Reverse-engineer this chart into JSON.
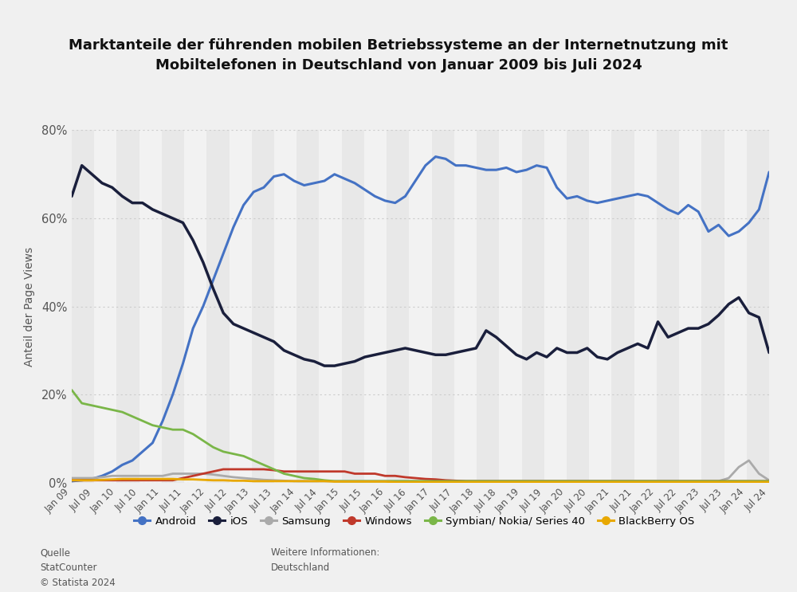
{
  "title": "Marktanteile der führenden mobilen Betriebssysteme an der Internetnutzung mit\nMobiltelefonen in Deutschland von Januar 2009 bis Juli 2024",
  "ylabel": "Anteil der Page Views",
  "fig_background": "#f0f0f0",
  "stripe_dark": "#e8e8e8",
  "stripe_light": "#f2f2f2",
  "grid_color": "#cccccc",
  "ylim": [
    0,
    80
  ],
  "yticks": [
    0,
    20,
    40,
    60,
    80
  ],
  "ytick_labels": [
    "0%",
    "20%",
    "40%",
    "60%",
    "80%"
  ],
  "source_text": "Quelle\nStatCounter\n© Statista 2024",
  "info_text": "Weitere Informationen:\nDeutschland",
  "series": {
    "Android": {
      "color": "#4472c4",
      "linewidth": 2.2,
      "values": [
        0.3,
        0.5,
        0.8,
        1.5,
        2.5,
        4.0,
        5.0,
        7.0,
        9.0,
        14.0,
        20.0,
        27.0,
        35.0,
        40.0,
        46.0,
        52.0,
        58.0,
        63.0,
        66.0,
        67.0,
        69.5,
        70.0,
        68.5,
        67.5,
        68.0,
        68.5,
        70.0,
        69.0,
        68.0,
        66.5,
        65.0,
        64.0,
        63.5,
        65.0,
        68.5,
        72.0,
        74.0,
        73.5,
        72.0,
        72.0,
        71.5,
        71.0,
        71.0,
        71.5,
        70.5,
        71.0,
        72.0,
        71.5,
        67.0,
        64.5,
        65.0,
        64.0,
        63.5,
        64.0,
        64.5,
        65.0,
        65.5,
        65.0,
        63.5,
        62.0,
        61.0,
        63.0,
        61.5,
        57.0,
        58.5,
        56.0,
        57.0,
        59.0,
        62.0,
        70.5
      ]
    },
    "iOS": {
      "color": "#1a1f3c",
      "linewidth": 2.5,
      "values": [
        65.0,
        72.0,
        70.0,
        68.0,
        67.0,
        65.0,
        63.5,
        63.5,
        62.0,
        61.0,
        60.0,
        59.0,
        55.0,
        50.0,
        44.0,
        38.5,
        36.0,
        35.0,
        34.0,
        33.0,
        32.0,
        30.0,
        29.0,
        28.0,
        27.5,
        26.5,
        26.5,
        27.0,
        27.5,
        28.5,
        29.0,
        29.5,
        30.0,
        30.5,
        30.0,
        29.5,
        29.0,
        29.0,
        29.5,
        30.0,
        30.5,
        34.5,
        33.0,
        31.0,
        29.0,
        28.0,
        29.5,
        28.5,
        30.5,
        29.5,
        29.5,
        30.5,
        28.5,
        28.0,
        29.5,
        30.5,
        31.5,
        30.5,
        36.5,
        33.0,
        34.0,
        35.0,
        35.0,
        36.0,
        38.0,
        40.5,
        42.0,
        38.5,
        37.5,
        29.5
      ]
    },
    "Samsung": {
      "color": "#aaaaaa",
      "linewidth": 2.0,
      "values": [
        1.0,
        1.0,
        1.0,
        1.2,
        1.5,
        1.5,
        1.5,
        1.5,
        1.5,
        1.5,
        2.0,
        2.0,
        2.0,
        2.0,
        1.8,
        1.5,
        1.2,
        1.0,
        0.8,
        0.6,
        0.5,
        0.4,
        0.3,
        0.3,
        0.3,
        0.3,
        0.3,
        0.3,
        0.3,
        0.3,
        0.3,
        0.3,
        0.3,
        0.3,
        0.3,
        0.3,
        0.3,
        0.3,
        0.3,
        0.3,
        0.3,
        0.3,
        0.3,
        0.3,
        0.3,
        0.3,
        0.3,
        0.3,
        0.3,
        0.3,
        0.3,
        0.3,
        0.3,
        0.3,
        0.3,
        0.3,
        0.3,
        0.3,
        0.3,
        0.3,
        0.3,
        0.3,
        0.3,
        0.3,
        0.3,
        1.0,
        3.5,
        5.0,
        2.0,
        0.5
      ]
    },
    "Windows": {
      "color": "#c0392b",
      "linewidth": 2.0,
      "values": [
        0.5,
        0.5,
        0.5,
        0.5,
        0.5,
        0.5,
        0.5,
        0.5,
        0.5,
        0.5,
        0.5,
        1.0,
        1.5,
        2.0,
        2.5,
        3.0,
        3.0,
        3.0,
        3.0,
        3.0,
        2.8,
        2.5,
        2.5,
        2.5,
        2.5,
        2.5,
        2.5,
        2.5,
        2.0,
        2.0,
        2.0,
        1.5,
        1.5,
        1.2,
        1.0,
        0.8,
        0.7,
        0.5,
        0.4,
        0.3,
        0.3,
        0.3,
        0.3,
        0.3,
        0.3,
        0.3,
        0.3,
        0.3,
        0.3,
        0.3,
        0.3,
        0.3,
        0.3,
        0.3,
        0.3,
        0.3,
        0.3,
        0.3,
        0.3,
        0.3,
        0.3,
        0.3,
        0.3,
        0.3,
        0.3,
        0.3,
        0.3,
        0.3,
        0.3,
        0.3
      ]
    },
    "Symbian/ Nokia/ Series 40": {
      "color": "#7ab648",
      "linewidth": 2.0,
      "values": [
        21.0,
        18.0,
        17.5,
        17.0,
        16.5,
        16.0,
        15.0,
        14.0,
        13.0,
        12.5,
        12.0,
        12.0,
        11.0,
        9.5,
        8.0,
        7.0,
        6.5,
        6.0,
        5.0,
        4.0,
        3.0,
        2.0,
        1.5,
        1.0,
        0.8,
        0.5,
        0.3,
        0.3,
        0.3,
        0.3,
        0.3,
        0.3,
        0.3,
        0.3,
        0.3,
        0.3,
        0.3,
        0.3,
        0.3,
        0.3,
        0.3,
        0.3,
        0.3,
        0.3,
        0.3,
        0.3,
        0.3,
        0.3,
        0.3,
        0.3,
        0.3,
        0.3,
        0.3,
        0.3,
        0.3,
        0.3,
        0.3,
        0.3,
        0.3,
        0.3,
        0.3,
        0.3,
        0.3,
        0.3,
        0.3,
        0.3,
        0.3,
        0.3,
        0.3,
        0.3
      ]
    },
    "BlackBerry OS": {
      "color": "#e8a800",
      "linewidth": 2.0,
      "values": [
        0.5,
        0.5,
        0.5,
        0.6,
        0.7,
        0.8,
        0.8,
        0.8,
        0.8,
        0.8,
        0.8,
        0.7,
        0.7,
        0.6,
        0.5,
        0.5,
        0.4,
        0.4,
        0.3,
        0.3,
        0.3,
        0.3,
        0.3,
        0.3,
        0.3,
        0.3,
        0.2,
        0.2,
        0.2,
        0.2,
        0.2,
        0.2,
        0.1,
        0.1,
        0.1,
        0.1,
        0.1,
        0.1,
        0.1,
        0.1,
        0.1,
        0.1,
        0.1,
        0.1,
        0.1,
        0.1,
        0.1,
        0.1,
        0.1,
        0.1,
        0.1,
        0.1,
        0.1,
        0.1,
        0.1,
        0.1,
        0.1,
        0.1,
        0.1,
        0.1,
        0.1,
        0.1,
        0.1,
        0.1,
        0.1,
        0.1,
        0.1,
        0.1,
        0.1,
        0.1
      ]
    }
  },
  "xtick_labels": [
    "Jan 09",
    "Jul 09",
    "Jan 10",
    "Jul 10",
    "Jan 11",
    "Jul 11",
    "Jan 12",
    "Jul 12",
    "Jan 13",
    "Jul 13",
    "Jan 14",
    "Jul 14",
    "Jan 15",
    "Jul 15",
    "Jan 16",
    "Jul 16",
    "Jan 17",
    "Jul 17",
    "Jan 18",
    "Jul 18",
    "Jan 19",
    "Jul 19",
    "Jan 20",
    "Jul 20",
    "Jan 21",
    "Jul 21",
    "Jan 22",
    "Jul 22",
    "Jan 23",
    "Jul 23",
    "Jan 24",
    "Jul 24"
  ],
  "n_xticks": 32
}
